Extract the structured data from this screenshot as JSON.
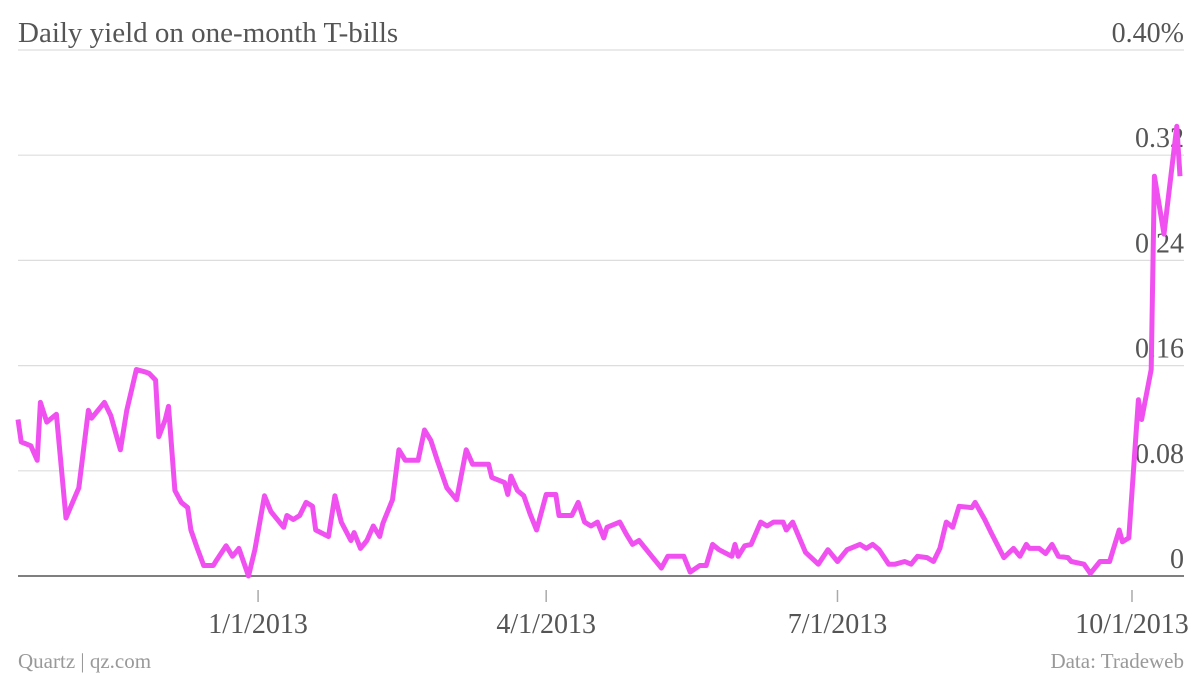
{
  "chart_data": {
    "type": "line",
    "title": "Daily yield on one-month T-bills",
    "footer_left": "Quartz | qz.com",
    "footer_right": "Data: Tradeweb",
    "x": [
      "2012-10-18",
      "2012-10-19",
      "2012-10-22",
      "2012-10-24",
      "2012-10-25",
      "2012-10-27",
      "2012-10-30",
      "2012-11-02",
      "2012-11-03",
      "2012-11-06",
      "2012-11-09",
      "2012-11-10",
      "2012-11-14",
      "2012-11-16",
      "2012-11-19",
      "2012-11-21",
      "2012-11-24",
      "2012-11-27",
      "2012-11-28",
      "2012-11-30",
      "2012-12-01",
      "2012-12-03",
      "2012-12-04",
      "2012-12-06",
      "2012-12-08",
      "2012-12-10",
      "2012-12-11",
      "2012-12-13",
      "2012-12-15",
      "2012-12-18",
      "2012-12-19",
      "2012-12-22",
      "2012-12-24",
      "2012-12-26",
      "2012-12-29",
      "2012-12-31",
      "2013-01-03",
      "2013-01-05",
      "2013-01-09",
      "2013-01-10",
      "2013-01-12",
      "2013-01-14",
      "2013-01-16",
      "2013-01-18",
      "2013-01-19",
      "2013-01-23",
      "2013-01-25",
      "2013-01-27",
      "2013-01-30",
      "2013-01-31",
      "2013-02-02",
      "2013-02-04",
      "2013-02-06",
      "2013-02-08",
      "2013-02-09",
      "2013-02-12",
      "2013-02-14",
      "2013-02-16",
      "2013-02-20",
      "2013-02-22",
      "2013-02-24",
      "2013-02-26",
      "2013-03-01",
      "2013-03-04",
      "2013-03-07",
      "2013-03-09",
      "2013-03-14",
      "2013-03-15",
      "2013-03-19",
      "2013-03-20",
      "2013-03-21",
      "2013-03-23",
      "2013-03-25",
      "2013-03-27",
      "2013-03-29",
      "2013-04-01",
      "2013-04-04",
      "2013-04-05",
      "2013-04-09",
      "2013-04-11",
      "2013-04-13",
      "2013-04-15",
      "2013-04-17",
      "2013-04-19",
      "2013-04-20",
      "2013-04-24",
      "2013-04-26",
      "2013-04-28",
      "2013-04-30",
      "2013-05-04",
      "2013-05-07",
      "2013-05-09",
      "2013-05-14",
      "2013-05-16",
      "2013-05-19",
      "2013-05-21",
      "2013-05-23",
      "2013-05-25",
      "2013-05-29",
      "2013-05-30",
      "2013-05-31",
      "2013-06-02",
      "2013-06-04",
      "2013-06-07",
      "2013-06-09",
      "2013-06-11",
      "2013-06-14",
      "2013-06-15",
      "2013-06-17",
      "2013-06-21",
      "2013-06-25",
      "2013-06-28",
      "2013-07-01",
      "2013-07-04",
      "2013-07-08",
      "2013-07-10",
      "2013-07-12",
      "2013-07-14",
      "2013-07-17",
      "2013-07-19",
      "2013-07-22",
      "2013-07-24",
      "2013-07-26",
      "2013-07-29",
      "2013-07-31",
      "2013-08-02",
      "2013-08-04",
      "2013-08-06",
      "2013-08-08",
      "2013-08-12",
      "2013-08-13",
      "2013-08-16",
      "2013-08-18",
      "2013-08-22",
      "2013-08-25",
      "2013-08-27",
      "2013-08-29",
      "2013-08-30",
      "2013-09-02",
      "2013-09-04",
      "2013-09-06",
      "2013-09-08",
      "2013-09-11",
      "2013-09-12",
      "2013-09-16",
      "2013-09-18",
      "2013-09-21",
      "2013-09-24",
      "2013-09-27",
      "2013-09-28",
      "2013-09-30",
      "2013-10-03",
      "2013-10-04",
      "2013-10-07",
      "2013-10-08",
      "2013-10-11",
      "2013-10-15",
      "2013-10-16"
    ],
    "series": [
      {
        "color": "#f050f0",
        "values": [
          0.119,
          0.102,
          0.099,
          0.088,
          0.132,
          0.117,
          0.123,
          0.044,
          0.05,
          0.067,
          0.126,
          0.12,
          0.132,
          0.122,
          0.096,
          0.126,
          0.157,
          0.155,
          0.154,
          0.149,
          0.106,
          0.119,
          0.129,
          0.065,
          0.056,
          0.052,
          0.035,
          0.021,
          0.008,
          0.008,
          0.012,
          0.023,
          0.015,
          0.021,
          0.0,
          0.02,
          0.061,
          0.049,
          0.037,
          0.046,
          0.043,
          0.046,
          0.056,
          0.053,
          0.035,
          0.03,
          0.061,
          0.041,
          0.027,
          0.033,
          0.021,
          0.027,
          0.038,
          0.03,
          0.04,
          0.058,
          0.096,
          0.088,
          0.088,
          0.111,
          0.103,
          0.088,
          0.067,
          0.058,
          0.096,
          0.085,
          0.085,
          0.075,
          0.071,
          0.062,
          0.076,
          0.065,
          0.061,
          0.047,
          0.035,
          0.062,
          0.062,
          0.046,
          0.046,
          0.056,
          0.041,
          0.038,
          0.041,
          0.029,
          0.037,
          0.041,
          0.032,
          0.024,
          0.027,
          0.015,
          0.006,
          0.015,
          0.015,
          0.003,
          0.008,
          0.008,
          0.024,
          0.02,
          0.015,
          0.024,
          0.015,
          0.023,
          0.024,
          0.041,
          0.038,
          0.041,
          0.041,
          0.035,
          0.041,
          0.018,
          0.009,
          0.02,
          0.011,
          0.02,
          0.024,
          0.021,
          0.024,
          0.02,
          0.009,
          0.009,
          0.011,
          0.009,
          0.015,
          0.014,
          0.011,
          0.021,
          0.041,
          0.037,
          0.053,
          0.052,
          0.056,
          0.043,
          0.033,
          0.014,
          0.021,
          0.015,
          0.024,
          0.021,
          0.021,
          0.017,
          0.024,
          0.015,
          0.014,
          0.011,
          0.009,
          0.002,
          0.011,
          0.011,
          0.035,
          0.026,
          0.029,
          0.134,
          0.119,
          0.157,
          0.304,
          0.26,
          0.342,
          0.304
        ]
      }
    ],
    "xlim": [
      "2012-10-18",
      "2013-10-16"
    ],
    "xticks": [
      {
        "value": "2013-01-01",
        "label": "1/1/2013"
      },
      {
        "value": "2013-04-01",
        "label": "4/1/2013"
      },
      {
        "value": "2013-07-01",
        "label": "7/1/2013"
      },
      {
        "value": "2013-10-01",
        "label": "10/1/2013"
      }
    ],
    "ylim": [
      0,
      0.4
    ],
    "yticks": [
      0,
      0.08,
      0.16,
      0.24,
      0.32,
      {
        "value": 0.4,
        "label": "0.40%"
      }
    ],
    "grid": true
  }
}
